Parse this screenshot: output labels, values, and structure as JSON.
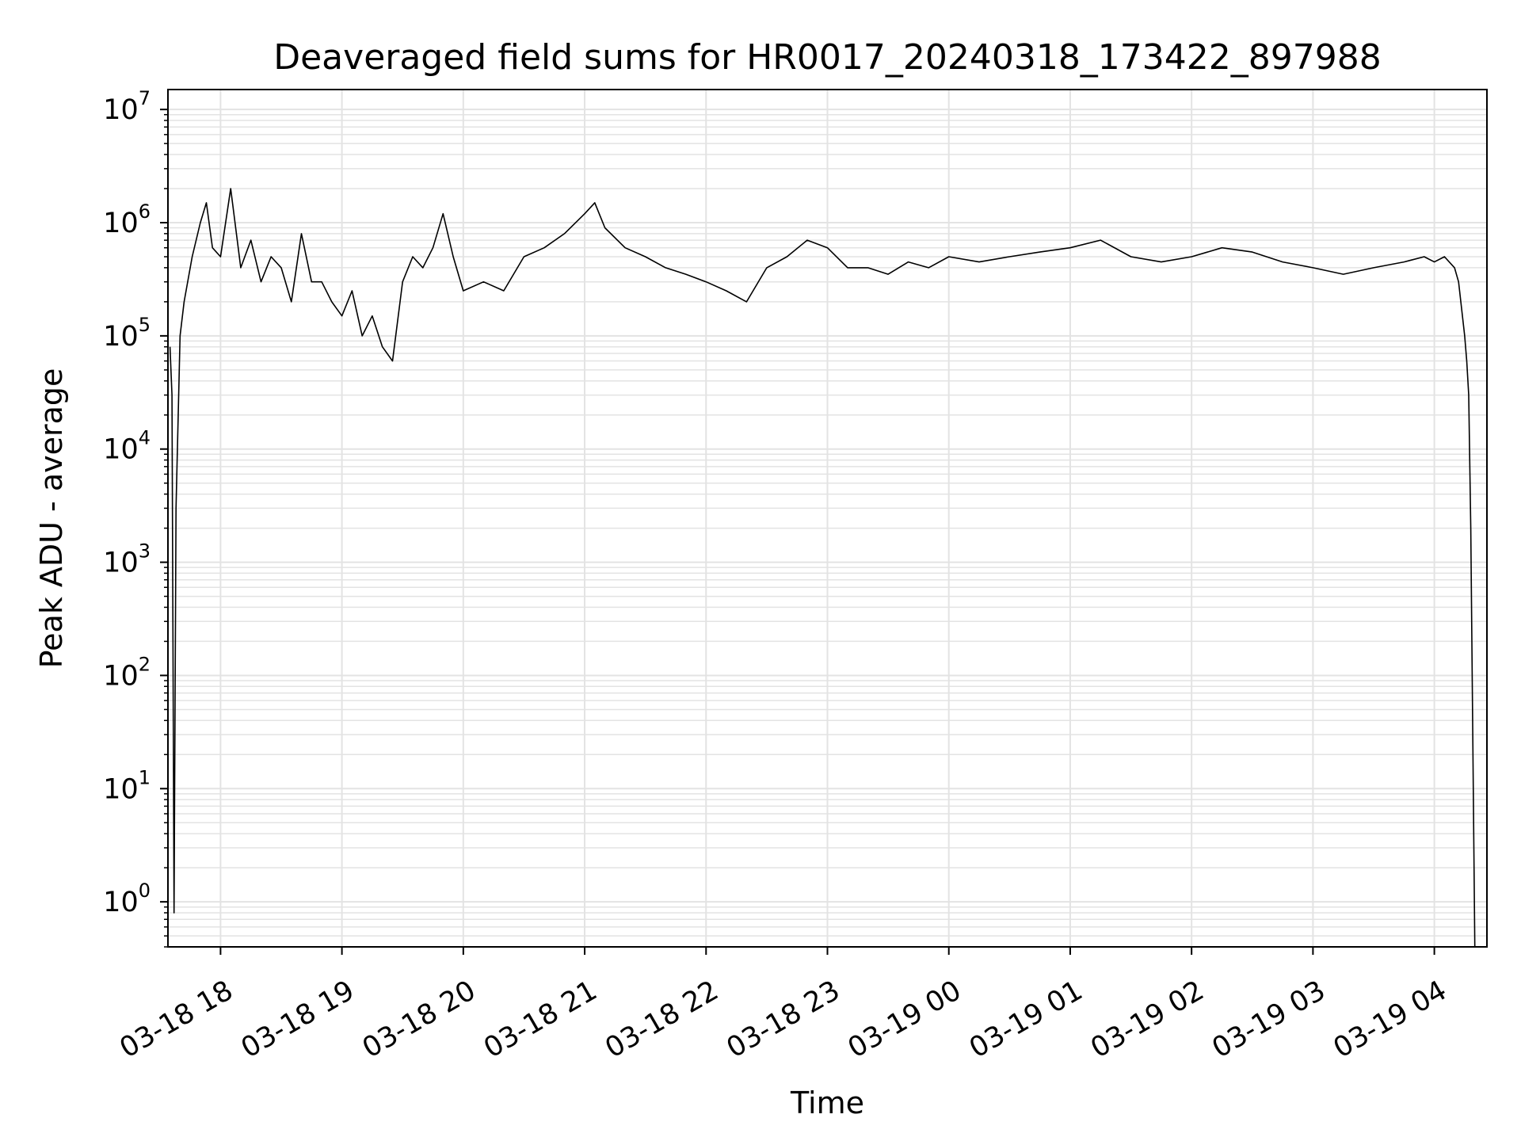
{
  "chart_data": {
    "type": "line",
    "title": "Deaveraged field sums for HR0017_20240318_173422_897988",
    "xlabel": "Time",
    "ylabel": "Peak ADU - average",
    "y_scale": "log",
    "ylim": [
      0.4,
      15000000
    ],
    "xlim": [
      "2024-03-18 17:34",
      "2024-03-19 04:26"
    ],
    "grid": true,
    "grid_minor": true,
    "line_color": "#000000",
    "grid_color": "#e3e3e3",
    "x_ticks": [
      {
        "value": "2024-03-18 18:00",
        "label": "03-18 18"
      },
      {
        "value": "2024-03-18 19:00",
        "label": "03-18 19"
      },
      {
        "value": "2024-03-18 20:00",
        "label": "03-18 20"
      },
      {
        "value": "2024-03-18 21:00",
        "label": "03-18 21"
      },
      {
        "value": "2024-03-18 22:00",
        "label": "03-18 22"
      },
      {
        "value": "2024-03-18 23:00",
        "label": "03-18 23"
      },
      {
        "value": "2024-03-19 00:00",
        "label": "03-19 00"
      },
      {
        "value": "2024-03-19 01:00",
        "label": "03-19 01"
      },
      {
        "value": "2024-03-19 02:00",
        "label": "03-19 02"
      },
      {
        "value": "2024-03-19 03:00",
        "label": "03-19 03"
      },
      {
        "value": "2024-03-19 04:00",
        "label": "03-19 04"
      }
    ],
    "y_ticks": [
      {
        "value": 1,
        "base": "10",
        "exp": "0"
      },
      {
        "value": 10,
        "base": "10",
        "exp": "1"
      },
      {
        "value": 100,
        "base": "10",
        "exp": "2"
      },
      {
        "value": 1000,
        "base": "10",
        "exp": "3"
      },
      {
        "value": 10000,
        "base": "10",
        "exp": "4"
      },
      {
        "value": 100000,
        "base": "10",
        "exp": "5"
      },
      {
        "value": 1000000,
        "base": "10",
        "exp": "6"
      },
      {
        "value": 10000000,
        "base": "10",
        "exp": "7"
      }
    ],
    "series": [
      {
        "x": [
          "2024-03-18 17:35",
          "2024-03-18 17:36",
          "2024-03-18 17:37",
          "2024-03-18 17:38",
          "2024-03-18 17:40",
          "2024-03-18 17:42",
          "2024-03-18 17:46",
          "2024-03-18 17:50",
          "2024-03-18 17:53",
          "2024-03-18 17:56",
          "2024-03-18 18:00",
          "2024-03-18 18:05",
          "2024-03-18 18:10",
          "2024-03-18 18:15",
          "2024-03-18 18:20",
          "2024-03-18 18:25",
          "2024-03-18 18:30",
          "2024-03-18 18:35",
          "2024-03-18 18:40",
          "2024-03-18 18:45",
          "2024-03-18 18:50",
          "2024-03-18 18:55",
          "2024-03-18 19:00",
          "2024-03-18 19:05",
          "2024-03-18 19:10",
          "2024-03-18 19:15",
          "2024-03-18 19:20",
          "2024-03-18 19:25",
          "2024-03-18 19:30",
          "2024-03-18 19:35",
          "2024-03-18 19:40",
          "2024-03-18 19:45",
          "2024-03-18 19:50",
          "2024-03-18 19:55",
          "2024-03-18 20:00",
          "2024-03-18 20:10",
          "2024-03-18 20:20",
          "2024-03-18 20:30",
          "2024-03-18 20:40",
          "2024-03-18 20:50",
          "2024-03-18 21:00",
          "2024-03-18 21:05",
          "2024-03-18 21:10",
          "2024-03-18 21:20",
          "2024-03-18 21:30",
          "2024-03-18 21:40",
          "2024-03-18 21:50",
          "2024-03-18 22:00",
          "2024-03-18 22:10",
          "2024-03-18 22:20",
          "2024-03-18 22:30",
          "2024-03-18 22:40",
          "2024-03-18 22:50",
          "2024-03-18 23:00",
          "2024-03-18 23:10",
          "2024-03-18 23:20",
          "2024-03-18 23:30",
          "2024-03-18 23:40",
          "2024-03-18 23:50",
          "2024-03-19 00:00",
          "2024-03-19 00:15",
          "2024-03-19 00:30",
          "2024-03-19 00:45",
          "2024-03-19 01:00",
          "2024-03-19 01:15",
          "2024-03-19 01:30",
          "2024-03-19 01:45",
          "2024-03-19 02:00",
          "2024-03-19 02:15",
          "2024-03-19 02:30",
          "2024-03-19 02:45",
          "2024-03-19 03:00",
          "2024-03-19 03:15",
          "2024-03-19 03:30",
          "2024-03-19 03:45",
          "2024-03-19 03:55",
          "2024-03-19 04:00",
          "2024-03-19 04:05",
          "2024-03-19 04:10",
          "2024-03-19 04:12",
          "2024-03-19 04:15",
          "2024-03-19 04:16",
          "2024-03-19 04:17",
          "2024-03-19 04:18",
          "2024-03-19 04:20"
        ],
        "y": [
          80000,
          30000,
          0.8,
          3000,
          100000,
          200000,
          500000,
          1000000,
          1500000,
          600000,
          500000,
          2000000,
          400000,
          700000,
          300000,
          500000,
          400000,
          200000,
          800000,
          300000,
          300000,
          200000,
          150000,
          250000,
          100000,
          150000,
          80000,
          60000,
          300000,
          500000,
          400000,
          600000,
          1200000,
          500000,
          250000,
          300000,
          250000,
          500000,
          600000,
          800000,
          1200000,
          1500000,
          900000,
          600000,
          500000,
          400000,
          350000,
          300000,
          250000,
          200000,
          400000,
          500000,
          700000,
          600000,
          400000,
          400000,
          350000,
          450000,
          400000,
          500000,
          450000,
          500000,
          550000,
          600000,
          700000,
          500000,
          450000,
          500000,
          600000,
          550000,
          450000,
          400000,
          350000,
          400000,
          450000,
          500000,
          450000,
          500000,
          400000,
          300000,
          100000,
          60000,
          30000,
          2000,
          0.4
        ]
      }
    ]
  }
}
